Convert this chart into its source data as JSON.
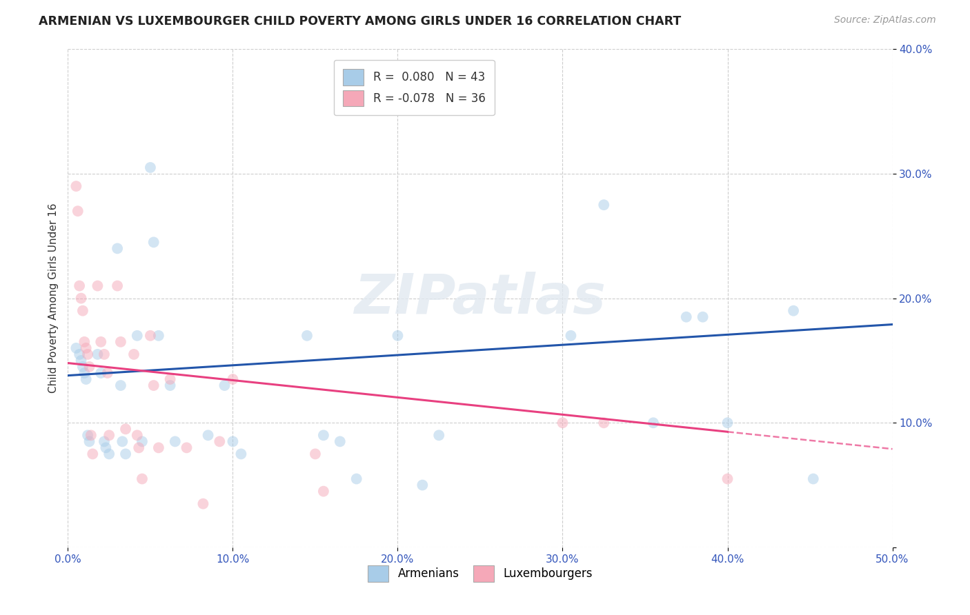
{
  "title": "ARMENIAN VS LUXEMBOURGER CHILD POVERTY AMONG GIRLS UNDER 16 CORRELATION CHART",
  "source": "Source: ZipAtlas.com",
  "ylabel": "Child Poverty Among Girls Under 16",
  "xlim": [
    0,
    0.5
  ],
  "ylim": [
    0,
    0.4
  ],
  "xticks": [
    0.0,
    0.1,
    0.2,
    0.3,
    0.4,
    0.5
  ],
  "yticks": [
    0.0,
    0.1,
    0.2,
    0.3,
    0.4
  ],
  "xtick_labels": [
    "0.0%",
    "10.0%",
    "20.0%",
    "30.0%",
    "40.0%",
    "50.0%"
  ],
  "ytick_labels": [
    "",
    "10.0%",
    "20.0%",
    "30.0%",
    "40.0%"
  ],
  "background_color": "#ffffff",
  "grid_color": "#c8c8c8",
  "watermark": "ZIPatlas",
  "r_armenian": 0.08,
  "r_luxembourger": -0.078,
  "n_armenian": 43,
  "n_luxembourger": 36,
  "color_armenian": "#a8cce8",
  "color_luxembourger": "#f5a8b8",
  "trendline_armenian_color": "#2255aa",
  "trendline_luxembourger_color": "#e84080",
  "armenian_x": [
    0.005,
    0.007,
    0.008,
    0.009,
    0.01,
    0.011,
    0.012,
    0.013,
    0.018,
    0.02,
    0.022,
    0.023,
    0.025,
    0.03,
    0.032,
    0.033,
    0.035,
    0.042,
    0.045,
    0.05,
    0.052,
    0.055,
    0.062,
    0.065,
    0.085,
    0.095,
    0.1,
    0.105,
    0.145,
    0.155,
    0.165,
    0.175,
    0.2,
    0.215,
    0.225,
    0.305,
    0.325,
    0.355,
    0.375,
    0.385,
    0.4,
    0.44,
    0.452
  ],
  "armenian_y": [
    0.16,
    0.155,
    0.15,
    0.145,
    0.14,
    0.135,
    0.09,
    0.085,
    0.155,
    0.14,
    0.085,
    0.08,
    0.075,
    0.24,
    0.13,
    0.085,
    0.075,
    0.17,
    0.085,
    0.305,
    0.245,
    0.17,
    0.13,
    0.085,
    0.09,
    0.13,
    0.085,
    0.075,
    0.17,
    0.09,
    0.085,
    0.055,
    0.17,
    0.05,
    0.09,
    0.17,
    0.275,
    0.1,
    0.185,
    0.185,
    0.1,
    0.19,
    0.055
  ],
  "luxembourger_x": [
    0.005,
    0.006,
    0.007,
    0.008,
    0.009,
    0.01,
    0.011,
    0.012,
    0.013,
    0.014,
    0.015,
    0.018,
    0.02,
    0.022,
    0.024,
    0.025,
    0.03,
    0.032,
    0.035,
    0.04,
    0.042,
    0.043,
    0.045,
    0.05,
    0.052,
    0.055,
    0.062,
    0.072,
    0.082,
    0.092,
    0.1,
    0.15,
    0.155,
    0.3,
    0.325,
    0.4
  ],
  "luxembourger_y": [
    0.29,
    0.27,
    0.21,
    0.2,
    0.19,
    0.165,
    0.16,
    0.155,
    0.145,
    0.09,
    0.075,
    0.21,
    0.165,
    0.155,
    0.14,
    0.09,
    0.21,
    0.165,
    0.095,
    0.155,
    0.09,
    0.08,
    0.055,
    0.17,
    0.13,
    0.08,
    0.135,
    0.08,
    0.035,
    0.085,
    0.135,
    0.075,
    0.045,
    0.1,
    0.1,
    0.055
  ],
  "marker_size": 130,
  "marker_alpha": 0.5,
  "trendline_armenian_intercept": 0.138,
  "trendline_armenian_slope": 0.082,
  "trendline_luxembourger_intercept": 0.148,
  "trendline_luxembourger_slope": -0.138
}
